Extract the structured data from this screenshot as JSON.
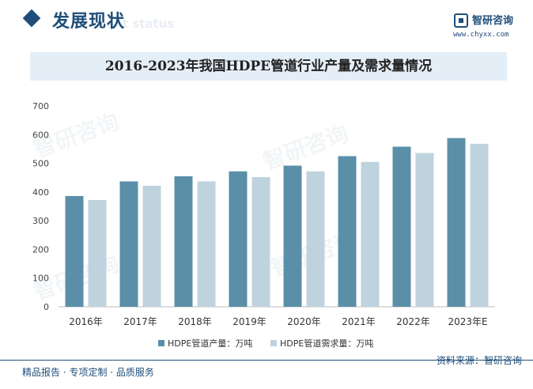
{
  "header": {
    "section_title": "发展现状",
    "section_subtitle": "ent status",
    "brand_name": "智研咨询",
    "brand_url": "www.chyxx.com"
  },
  "watermark_text": "智研咨询",
  "colors": {
    "production": "#5b8fa8",
    "demand": "#bfd3de",
    "brand": "#1f4e79",
    "title_band": "#e4eef7"
  },
  "chart_data": {
    "type": "bar",
    "title": "2016-2023年我国HDPE管道行业产量及需求量情况",
    "categories": [
      "2016年",
      "2017年",
      "2018年",
      "2019年",
      "2020年",
      "2021年",
      "2022年",
      "2023年E"
    ],
    "series": [
      {
        "name": "HDPE管道产量：万吨",
        "values": [
          386,
          437,
          455,
          472,
          492,
          525,
          558,
          588
        ]
      },
      {
        "name": "HDPE管道需求量：万吨",
        "values": [
          372,
          422,
          437,
          452,
          472,
          505,
          536,
          568
        ]
      }
    ],
    "ylim": [
      0,
      700
    ],
    "yticks": [
      0,
      100,
      200,
      300,
      400,
      500,
      600,
      700
    ],
    "xlabel": "",
    "ylabel": "",
    "grid": false,
    "legend": "bottom"
  },
  "footer": {
    "left": "精品报告 · 专项定制 · 品质服务",
    "source": "资料来源：智研咨询"
  }
}
